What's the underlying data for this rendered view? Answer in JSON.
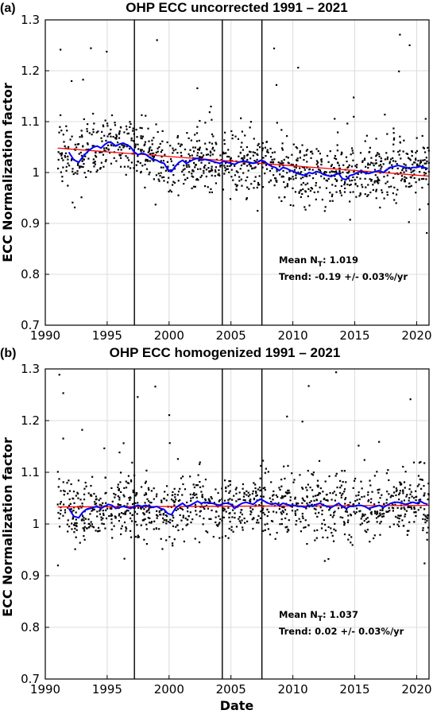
{
  "chart_data": [
    {
      "type": "scatter",
      "panel_label": "(a)",
      "title": "OHP ECC uncorrected 1991 – 2021",
      "ylabel": "ECC Normalization factor",
      "xlabel": "",
      "xlim": [
        1990,
        2021
      ],
      "ylim": [
        0.7,
        1.3
      ],
      "xticks": [
        1990,
        1995,
        2000,
        2005,
        2010,
        2015,
        2020
      ],
      "yticks": [
        0.7,
        0.8,
        0.9,
        1,
        1.1,
        1.2,
        1.3
      ],
      "yticklabels": [
        "0.7",
        "0.8",
        "0.9",
        "1",
        "1.1",
        "1.2",
        "1.3"
      ],
      "grid": true,
      "vertical_lines_x": [
        1997.2,
        2004.3,
        2007.5
      ],
      "annotation": {
        "mean_prefix": "Mean N",
        "mean_sub": "T",
        "mean_value": ": 1.019",
        "trend": "Trend: -0.19 +/- 0.03%/yr"
      },
      "point_color": "#000000",
      "trend_color": "#ff0000",
      "running_mean_color": "#0000ff",
      "trend_line": {
        "x": [
          1991,
          2021
        ],
        "y": [
          1.048,
          0.993
        ]
      },
      "running_mean": {
        "x": [
          1991.9,
          1992.3,
          1992.7,
          1993.0,
          1993.3,
          1993.6,
          1993.9,
          1994.2,
          1994.5,
          1994.8,
          1995.1,
          1995.4,
          1995.7,
          1996.0,
          1996.3,
          1996.6,
          1996.9,
          1997.2,
          1997.5,
          1997.8,
          1998.1,
          1998.4,
          1998.7,
          1999.0,
          1999.3,
          1999.6,
          1999.9,
          2000.2,
          2000.5,
          2000.8,
          2001.1,
          2001.4,
          2001.7,
          2002.0,
          2002.3,
          2002.6,
          2002.9,
          2003.2,
          2003.5,
          2003.8,
          2004.1,
          2004.4,
          2004.7,
          2005.0,
          2005.3,
          2005.6,
          2005.9,
          2006.2,
          2006.5,
          2006.8,
          2007.1,
          2007.4,
          2007.7,
          2008.0,
          2008.3,
          2008.6,
          2008.9,
          2009.2,
          2009.5,
          2009.8,
          2010.1,
          2010.4,
          2010.7,
          2011.0,
          2011.3,
          2011.6,
          2011.9,
          2012.2,
          2012.5,
          2012.8,
          2013.1,
          2013.4,
          2013.7,
          2014.0,
          2014.3,
          2014.6,
          2014.9,
          2015.2,
          2015.5,
          2015.8,
          2016.1,
          2016.4,
          2016.7,
          2017.0,
          2017.3,
          2017.6,
          2017.9,
          2018.2,
          2018.5,
          2018.8,
          2019.1,
          2019.4,
          2019.7,
          2020.0,
          2020.3,
          2020.6,
          2020.9
        ],
        "y": [
          1.04,
          1.025,
          1.02,
          1.03,
          1.038,
          1.045,
          1.05,
          1.052,
          1.048,
          1.055,
          1.06,
          1.058,
          1.052,
          1.056,
          1.058,
          1.054,
          1.05,
          1.04,
          1.035,
          1.038,
          1.036,
          1.03,
          1.026,
          1.024,
          1.02,
          1.018,
          1.006,
          1.002,
          1.012,
          1.02,
          1.024,
          1.018,
          1.022,
          1.026,
          1.028,
          1.024,
          1.026,
          1.024,
          1.022,
          1.02,
          1.018,
          1.022,
          1.02,
          1.018,
          1.016,
          1.02,
          1.022,
          1.022,
          1.02,
          1.018,
          1.02,
          1.024,
          1.022,
          1.016,
          1.012,
          1.01,
          1.004,
          1.01,
          1.008,
          1.004,
          1.002,
          0.998,
          0.996,
          0.994,
          1.0,
          0.998,
          1.002,
          1.0,
          0.996,
          0.994,
          0.992,
          0.996,
          0.998,
          0.988,
          0.986,
          0.994,
          0.996,
          1.0,
          1.002,
          1.0,
          0.998,
          1.0,
          1.002,
          1.004,
          1.0,
          1.006,
          1.01,
          1.012,
          1.014,
          1.012,
          1.01,
          1.008,
          1.01,
          1.01,
          1.012,
          1.01,
          1.008
        ]
      },
      "scatter_params": {
        "start": 1991.0,
        "end": 2020.99,
        "n": 1150,
        "seed": 11,
        "model": "trend+running_mean",
        "noise_sd": 0.045
      }
    },
    {
      "type": "scatter",
      "panel_label": "(b)",
      "title": "OHP ECC homogenized 1991 – 2021",
      "ylabel": "ECC Normalization factor",
      "xlabel": "Date",
      "xlim": [
        1990,
        2021
      ],
      "ylim": [
        0.7,
        1.3
      ],
      "xticks": [
        1990,
        1995,
        2000,
        2005,
        2010,
        2015,
        2020
      ],
      "yticks": [
        0.7,
        0.8,
        0.9,
        1,
        1.1,
        1.2,
        1.3
      ],
      "yticklabels": [
        "0.7",
        "0.8",
        "0.9",
        "1",
        "1.1",
        "1.2",
        "1.3"
      ],
      "grid": true,
      "vertical_lines_x": [
        1997.2,
        2004.3,
        2007.5
      ],
      "annotation": {
        "mean_prefix": "Mean N",
        "mean_sub": "T",
        "mean_value": ": 1.037",
        "trend": "Trend: 0.02 +/- 0.03%/yr"
      },
      "point_color": "#000000",
      "trend_color": "#ff0000",
      "running_mean_color": "#0000ff",
      "trend_line": {
        "x": [
          1991,
          2021
        ],
        "y": [
          1.033,
          1.036
        ]
      },
      "running_mean": {
        "x": [
          1991.9,
          1992.3,
          1992.7,
          1993.0,
          1993.3,
          1993.6,
          1993.9,
          1994.2,
          1994.5,
          1994.8,
          1995.1,
          1995.4,
          1995.7,
          1996.0,
          1996.3,
          1996.6,
          1996.9,
          1997.2,
          1997.5,
          1997.8,
          1998.1,
          1998.4,
          1998.7,
          1999.0,
          1999.3,
          1999.6,
          1999.9,
          2000.2,
          2000.5,
          2000.8,
          2001.1,
          2001.4,
          2001.7,
          2002.0,
          2002.3,
          2002.6,
          2002.9,
          2003.2,
          2003.5,
          2003.8,
          2004.1,
          2004.4,
          2004.7,
          2005.0,
          2005.3,
          2005.6,
          2005.9,
          2006.2,
          2006.5,
          2006.8,
          2007.1,
          2007.4,
          2007.7,
          2008.0,
          2008.3,
          2008.6,
          2008.9,
          2009.2,
          2009.5,
          2009.8,
          2010.1,
          2010.4,
          2010.7,
          2011.0,
          2011.3,
          2011.6,
          2011.9,
          2012.2,
          2012.5,
          2012.8,
          2013.1,
          2013.4,
          2013.7,
          2014.0,
          2014.3,
          2014.6,
          2014.9,
          2015.2,
          2015.5,
          2015.8,
          2016.1,
          2016.4,
          2016.7,
          2017.0,
          2017.3,
          2017.6,
          2017.9,
          2018.2,
          2018.5,
          2018.8,
          2019.1,
          2019.4,
          2019.7,
          2020.0,
          2020.3,
          2020.6,
          2020.9
        ],
        "y": [
          1.03,
          1.015,
          1.012,
          1.022,
          1.028,
          1.03,
          1.032,
          1.034,
          1.03,
          1.034,
          1.038,
          1.036,
          1.03,
          1.032,
          1.034,
          1.032,
          1.03,
          1.034,
          1.036,
          1.034,
          1.036,
          1.034,
          1.032,
          1.034,
          1.03,
          1.028,
          1.02,
          1.018,
          1.03,
          1.036,
          1.04,
          1.034,
          1.036,
          1.04,
          1.044,
          1.04,
          1.042,
          1.04,
          1.04,
          1.038,
          1.036,
          1.04,
          1.04,
          1.038,
          1.03,
          1.036,
          1.04,
          1.042,
          1.04,
          1.038,
          1.044,
          1.048,
          1.044,
          1.04,
          1.038,
          1.04,
          1.036,
          1.04,
          1.038,
          1.036,
          1.036,
          1.034,
          1.034,
          1.032,
          1.036,
          1.034,
          1.038,
          1.04,
          1.036,
          1.034,
          1.032,
          1.036,
          1.04,
          1.034,
          1.03,
          1.034,
          1.034,
          1.036,
          1.036,
          1.034,
          1.03,
          1.032,
          1.034,
          1.036,
          1.032,
          1.036,
          1.04,
          1.042,
          1.042,
          1.04,
          1.038,
          1.04,
          1.042,
          1.04,
          1.044,
          1.04,
          1.038
        ]
      },
      "scatter_params": {
        "start": 1991.0,
        "end": 2020.99,
        "n": 1150,
        "seed": 23,
        "model": "trend+running_mean",
        "noise_sd": 0.045
      }
    }
  ]
}
